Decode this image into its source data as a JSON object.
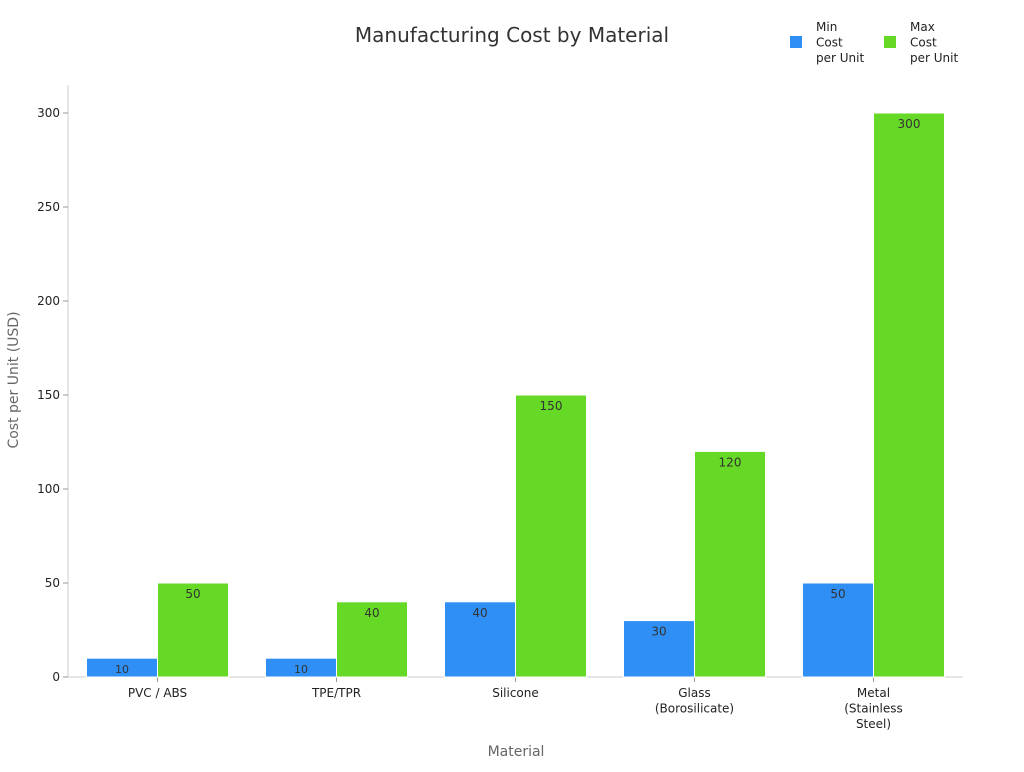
{
  "chart_data": {
    "type": "bar",
    "title": "Manufacturing Cost by Material",
    "xlabel": "Material",
    "ylabel": "Cost per Unit (USD)",
    "ylim": [
      0,
      300
    ],
    "yticks": [
      0,
      50,
      100,
      150,
      200,
      250,
      300
    ],
    "categories": [
      [
        "PVC / ABS"
      ],
      [
        "TPE/TPR"
      ],
      [
        "Silicone"
      ],
      [
        "Glass",
        "(Borosilicate)"
      ],
      [
        "Metal",
        "(Stainless",
        "Steel)"
      ]
    ],
    "series": [
      {
        "name": [
          "Min",
          "Cost",
          "per Unit"
        ],
        "color": "#2f8ff5",
        "values": [
          10,
          10,
          40,
          30,
          50
        ]
      },
      {
        "name": [
          "Max",
          "Cost",
          "per Unit"
        ],
        "color": "#66d926",
        "values": [
          50,
          40,
          150,
          120,
          300
        ]
      }
    ],
    "grid": false,
    "legend_position": "top-right",
    "data_labels": true
  }
}
